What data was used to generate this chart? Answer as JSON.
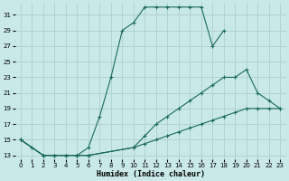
{
  "xlabel": "Humidex (Indice chaleur)",
  "bg_color": "#c9e8e8",
  "grid_color": "#aed0d0",
  "line_color": "#1a6b5a",
  "xlim": [
    -0.5,
    23.5
  ],
  "ylim": [
    12.5,
    32.5
  ],
  "yticks": [
    13,
    15,
    17,
    19,
    21,
    23,
    25,
    27,
    29,
    31
  ],
  "xticks": [
    0,
    1,
    2,
    3,
    4,
    5,
    6,
    7,
    8,
    9,
    10,
    11,
    12,
    13,
    14,
    15,
    16,
    17,
    18,
    19,
    20,
    21,
    22,
    23
  ],
  "curve1_x": [
    0,
    1,
    2,
    3,
    4,
    5,
    6,
    7,
    8,
    9,
    10,
    11,
    12,
    13,
    14,
    15,
    16,
    17,
    18
  ],
  "curve1_y": [
    15,
    14,
    13,
    13,
    13,
    13,
    14,
    18,
    23,
    29,
    30,
    32,
    32,
    32,
    32,
    32,
    32,
    27,
    29
  ],
  "curve2_x": [
    0,
    2,
    3,
    4,
    5,
    6,
    10,
    11,
    12,
    13,
    14,
    15,
    16,
    17,
    18,
    19,
    20,
    21,
    22,
    23
  ],
  "curve2_y": [
    15,
    13,
    13,
    13,
    13,
    13,
    14,
    15.5,
    17,
    18,
    19,
    20,
    21,
    22,
    23,
    23,
    24,
    21,
    20,
    19
  ],
  "curve3_x": [
    0,
    2,
    3,
    4,
    5,
    6,
    10,
    11,
    12,
    13,
    14,
    15,
    16,
    17,
    18,
    19,
    20,
    21,
    22,
    23
  ],
  "curve3_y": [
    15,
    13,
    13,
    13,
    13,
    13,
    14,
    14.5,
    15,
    15.5,
    16,
    16.5,
    17,
    17.5,
    18,
    18.5,
    19,
    19,
    19,
    19
  ]
}
